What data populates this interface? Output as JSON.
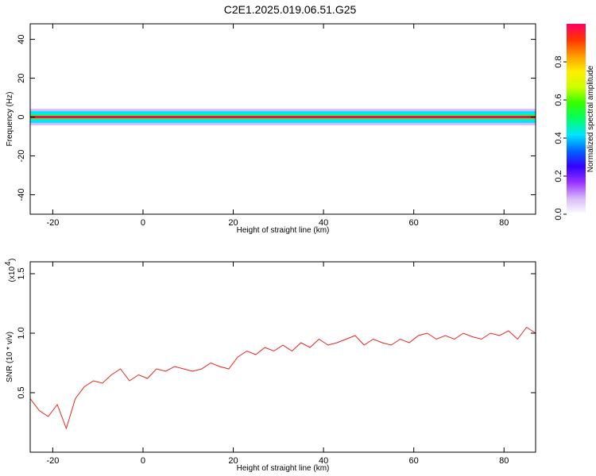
{
  "title": "C2E1.2025.019.06.51.G25",
  "chart_data": [
    {
      "type": "heatmap",
      "xlabel": "Height of straight line (km)",
      "ylabel": "Frequency (Hz)",
      "xlim": [
        -25,
        87
      ],
      "ylim": [
        -50,
        48
      ],
      "x_ticks": [
        -20,
        0,
        20,
        40,
        60,
        80
      ],
      "y_ticks": [
        -40,
        -20,
        0,
        20,
        40
      ],
      "colorbar": {
        "label": "Normalized spectral amplitude",
        "range": [
          0,
          1
        ],
        "ticks": [
          "0.0",
          "0.2",
          "0.4",
          "0.6",
          "0.8"
        ],
        "colors": [
          "#ffffff",
          "#d7b9f7",
          "#9933ff",
          "#3300ff",
          "#0066ff",
          "#00e5ff",
          "#00ff66",
          "#33ff00",
          "#ccff00",
          "#ffee00",
          "#ff9900",
          "#ff3300",
          "#ff0066"
        ]
      },
      "band_center_hz": 0,
      "band_halfwidth_hz": 3,
      "peak_value": 1.0
    },
    {
      "type": "line",
      "xlabel": "Height of straight line (km)",
      "ylabel": "SNR (10 * v/v)",
      "y_scale_label": "(x10",
      "y_scale_exp": "4",
      "xlim": [
        -25,
        87
      ],
      "ylim": [
        0.0,
        1.6
      ],
      "x_ticks": [
        -20,
        0,
        20,
        40,
        60,
        80
      ],
      "y_ticks": [
        0.5,
        1.0,
        1.5
      ],
      "color": "#e8231f",
      "series": [
        {
          "x": [
            -25,
            -23,
            -21,
            -19,
            -17,
            -15,
            -13,
            -11,
            -9,
            -7,
            -5,
            -3,
            -1,
            1,
            3,
            5,
            7,
            9,
            11,
            13,
            15,
            17,
            19,
            21,
            23,
            25,
            27,
            29,
            31,
            33,
            35,
            37,
            39,
            41,
            43,
            45,
            47,
            49,
            51,
            53,
            55,
            57,
            59,
            61,
            63,
            65,
            67,
            69,
            71,
            73,
            75,
            77,
            79,
            81,
            83,
            85,
            87
          ],
          "y": [
            0.45,
            0.35,
            0.3,
            0.4,
            0.2,
            0.45,
            0.55,
            0.6,
            0.58,
            0.65,
            0.7,
            0.6,
            0.65,
            0.62,
            0.7,
            0.68,
            0.72,
            0.7,
            0.68,
            0.7,
            0.75,
            0.72,
            0.7,
            0.8,
            0.85,
            0.82,
            0.88,
            0.85,
            0.9,
            0.85,
            0.92,
            0.88,
            0.95,
            0.9,
            0.92,
            0.95,
            0.98,
            0.9,
            0.95,
            0.92,
            0.9,
            0.95,
            0.92,
            0.98,
            1.0,
            0.95,
            0.98,
            0.95,
            1.0,
            0.97,
            0.95,
            1.0,
            0.98,
            1.02,
            0.95,
            1.05,
            1.0
          ]
        }
      ]
    }
  ]
}
